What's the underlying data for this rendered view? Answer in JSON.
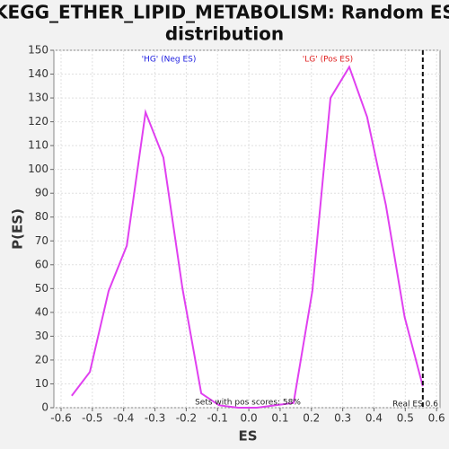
{
  "chart_data": {
    "type": "line",
    "title": [
      "KEGG_ETHER_LIPID_METABOLISM: Random ES",
      "distribution"
    ],
    "xlabel": "ES",
    "ylabel": "P(ES)",
    "x": [
      -0.566,
      -0.508,
      -0.448,
      -0.39,
      -0.33,
      -0.273,
      -0.212,
      -0.152,
      -0.095,
      -0.034,
      0.026,
      0.083,
      0.143,
      0.203,
      0.261,
      0.321,
      0.378,
      0.438,
      0.498,
      0.556
    ],
    "series": [
      {
        "color": "#e040f0",
        "values": [
          5,
          15,
          49,
          68,
          124,
          105,
          50,
          6,
          1,
          0,
          0,
          1,
          2,
          49,
          130,
          143,
          122,
          85,
          38,
          9
        ]
      }
    ],
    "xlim": [
      -0.623,
      0.611
    ],
    "ylim": [
      0,
      150
    ],
    "xticks": [
      -0.6,
      -0.5,
      -0.4,
      -0.3,
      -0.2,
      -0.1,
      {
        "value": 0,
        "label": "0.0"
      },
      0.1,
      0.2,
      0.3,
      0.4,
      0.5,
      0.6
    ],
    "yticks": [
      0,
      10,
      20,
      30,
      40,
      50,
      60,
      70,
      80,
      90,
      100,
      110,
      120,
      130,
      140,
      150
    ],
    "grid": true,
    "real_es": {
      "value": 0.556,
      "label": "Real ES 0.6"
    },
    "annotations": [
      {
        "text": "'HG' (Neg ES)",
        "color": "#2020e0"
      },
      {
        "text": "'LG' (Pos ES)",
        "color": "#e02020"
      },
      {
        "text": "Sets with pos scores: 58%",
        "color": "#222222"
      }
    ]
  }
}
